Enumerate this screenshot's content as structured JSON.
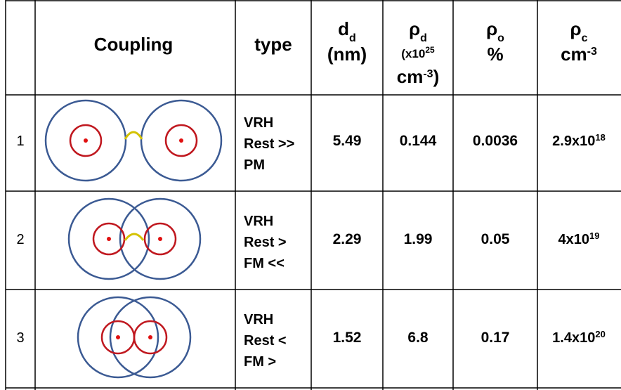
{
  "table": {
    "header": {
      "coupling": "Coupling",
      "type": "type",
      "dd": {
        "symbol": "d",
        "sub": "d",
        "unit": "(nm)"
      },
      "rho_d": {
        "symbol": "ρ",
        "sub": "d",
        "unit_a": "(x10",
        "unit_a_sup": "25",
        "unit_b": "cm",
        "unit_b_sup": "-3",
        "unit_b_end": ")"
      },
      "rho_o": {
        "symbol": "ρ",
        "sub": "o",
        "unit": "%"
      },
      "rho_c": {
        "symbol": "ρ",
        "sub": "c",
        "unit": "cm",
        "unit_sup": "-3"
      }
    },
    "rows": [
      {
        "index": "1",
        "type": [
          "VRH",
          "Rest >>",
          "PM"
        ],
        "dd": "5.49",
        "rho_d": "0.144",
        "rho_o": "0.0036",
        "rho_c": {
          "base": "2.9x10",
          "exp": "18"
        }
      },
      {
        "index": "2",
        "type": [
          "VRH",
          "Rest >",
          "FM <<"
        ],
        "dd": "2.29",
        "rho_d": "1.99",
        "rho_o": "0.05",
        "rho_c": {
          "base": "4x10",
          "exp": "19"
        }
      },
      {
        "index": "3",
        "type": [
          "VRH",
          "Rest <",
          "FM >"
        ],
        "dd": "1.52",
        "rho_d": "6.8",
        "rho_o": "0.17",
        "rho_c": {
          "base": "1.4x10",
          "exp": "20"
        }
      }
    ]
  }
}
